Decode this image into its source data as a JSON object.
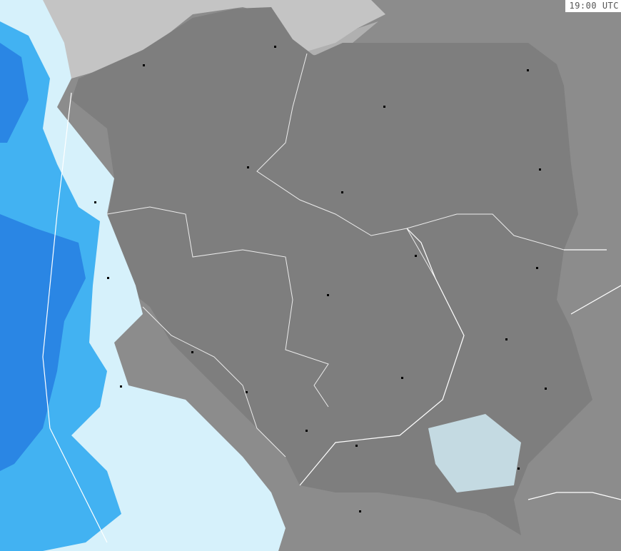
{
  "time_label": "19:00 UTC",
  "colors": {
    "land_outside": "#8c8c8c",
    "land_poland": "#808080",
    "sea": "#c4c4c4",
    "precip_light": "#d6f1fb",
    "precip_medium": "#42b2f2",
    "precip_heavy": "#2a86e4",
    "borders": "#ffffff",
    "cities": "#000000"
  },
  "layers": [
    "radar-precipitation",
    "country-borders",
    "voivodeship-borders",
    "cities"
  ]
}
